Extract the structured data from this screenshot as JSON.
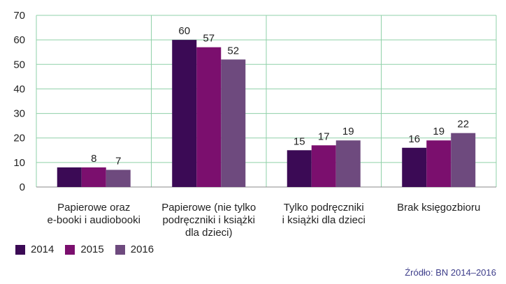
{
  "chart_data": {
    "type": "bar",
    "categories": [
      [
        "Papierowe oraz",
        "e-booki i audiobooki"
      ],
      [
        "Papierowe (nie tylko",
        "podręczniki i książki",
        "dla dzieci)"
      ],
      [
        "Tylko podręczniki",
        "i książki dla dzieci"
      ],
      [
        "Brak księgozbioru"
      ]
    ],
    "series": [
      {
        "name": "2014",
        "color": "#3b0a55",
        "values": [
          8,
          60,
          15,
          16
        ]
      },
      {
        "name": "2015",
        "color": "#7b0f6e",
        "values": [
          8,
          57,
          17,
          19
        ]
      },
      {
        "name": "2016",
        "color": "#6e4a7e",
        "values": [
          7,
          52,
          19,
          22
        ]
      }
    ],
    "data_labels": [
      [
        null,
        60,
        15,
        16
      ],
      [
        8,
        57,
        17,
        19
      ],
      [
        7,
        52,
        19,
        22
      ]
    ],
    "ylim": [
      0,
      70
    ],
    "yticks": [
      0,
      10,
      20,
      30,
      40,
      50,
      60,
      70
    ],
    "grid": true,
    "grid_color": "#8fd0a8",
    "legend_position": "bottom-left"
  },
  "source": "Źródło: BN 2014–2016"
}
